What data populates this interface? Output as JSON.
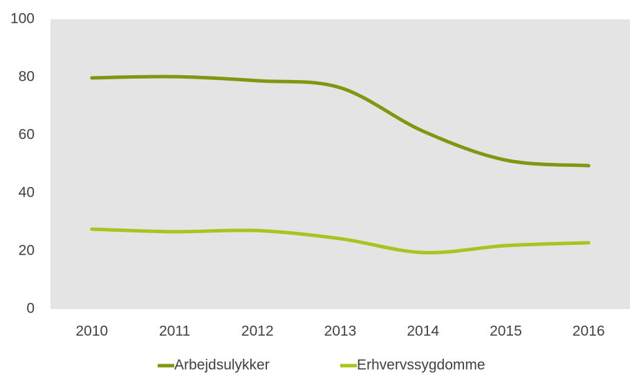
{
  "chart_data": {
    "type": "line",
    "categories": [
      "2010",
      "2011",
      "2012",
      "2013",
      "2014",
      "2015",
      "2016"
    ],
    "series": [
      {
        "name": "Arbejdsulykker",
        "color": "#7e980f",
        "values": [
          79.8,
          80.2,
          78.8,
          76.4,
          61.4,
          51.4,
          49.5
        ]
      },
      {
        "name": "Erhvervssygdomme",
        "color": "#a6c51e",
        "values": [
          27.6,
          26.7,
          27.1,
          24.3,
          19.5,
          21.9,
          22.9
        ]
      }
    ],
    "ylim": [
      0,
      100
    ],
    "yticks": [
      0,
      20,
      40,
      60,
      80,
      100
    ],
    "grid": false,
    "legend": "bottom"
  }
}
